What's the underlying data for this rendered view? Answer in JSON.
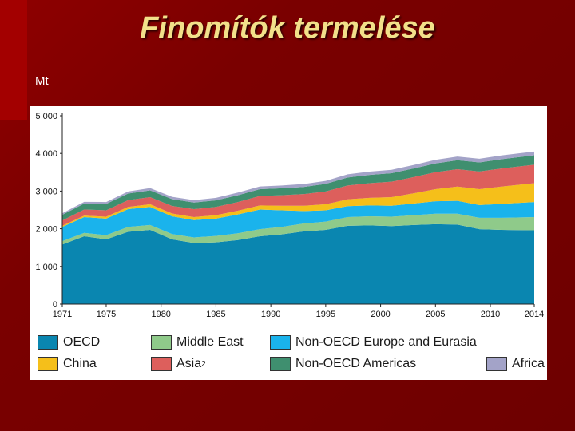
{
  "slide": {
    "title": "Finomítók termelése",
    "unit": "Mt"
  },
  "chart_data": {
    "type": "area",
    "stacked": true,
    "title": "Finomítók termelése",
    "ylabel": "Mt",
    "xlabel": "",
    "ylim": [
      0,
      5000
    ],
    "xlim": [
      1971,
      2014
    ],
    "grid": false,
    "legend_position": "bottom",
    "x_ticks": [
      "1971",
      "1975",
      "1980",
      "1985",
      "1990",
      "1995",
      "2000",
      "2005",
      "2010",
      "2014"
    ],
    "y_ticks": [
      "0",
      "1 000",
      "2 000",
      "3 000",
      "4 000",
      "5 000"
    ],
    "x": [
      1971,
      1973,
      1975,
      1977,
      1979,
      1981,
      1983,
      1985,
      1987,
      1989,
      1991,
      1993,
      1995,
      1997,
      1999,
      2001,
      2003,
      2005,
      2007,
      2009,
      2011,
      2014
    ],
    "series": [
      {
        "name": "OECD",
        "color": "#0a86b0",
        "values": [
          1580,
          1800,
          1720,
          1920,
          1970,
          1720,
          1620,
          1640,
          1700,
          1800,
          1850,
          1930,
          1970,
          2080,
          2090,
          2070,
          2100,
          2120,
          2110,
          1990,
          1970,
          1960
        ]
      },
      {
        "name": "Middle East",
        "color": "#8fca8a",
        "values": [
          90,
          90,
          110,
          130,
          130,
          140,
          150,
          170,
          180,
          190,
          200,
          210,
          220,
          230,
          240,
          250,
          260,
          280,
          290,
          300,
          320,
          350
        ]
      },
      {
        "name": "Non-OECD Europe and Eurasia",
        "color": "#1ab3ec",
        "values": [
          380,
          420,
          440,
          470,
          480,
          470,
          460,
          460,
          500,
          520,
          440,
          330,
          300,
          290,
          290,
          290,
          310,
          330,
          340,
          340,
          370,
          400
        ]
      },
      {
        "name": "China",
        "color": "#f5bf1a",
        "values": [
          30,
          40,
          50,
          60,
          70,
          75,
          80,
          90,
          100,
          110,
          120,
          140,
          160,
          180,
          200,
          230,
          270,
          320,
          380,
          420,
          460,
          500
        ]
      },
      {
        "name": "Asia²",
        "color": "#dd5f5c",
        "values": [
          140,
          160,
          170,
          180,
          190,
          200,
          210,
          220,
          230,
          250,
          280,
          310,
          340,
          370,
          390,
          410,
          430,
          450,
          460,
          470,
          480,
          490
        ]
      },
      {
        "name": "Non-OECD Americas",
        "color": "#3f8f6f",
        "values": [
          150,
          160,
          170,
          175,
          180,
          180,
          175,
          175,
          180,
          180,
          185,
          190,
          200,
          210,
          220,
          225,
          230,
          235,
          240,
          240,
          245,
          250
        ]
      },
      {
        "name": "Africa",
        "color": "#a3a3c8",
        "values": [
          40,
          45,
          50,
          55,
          60,
          62,
          64,
          66,
          70,
          72,
          75,
          78,
          80,
          85,
          88,
          90,
          92,
          95,
          96,
          98,
          100,
          100
        ]
      }
    ]
  },
  "legend": {
    "items": [
      {
        "label": "OECD",
        "sup": "",
        "color": "#0a86b0"
      },
      {
        "label": "Middle East",
        "sup": "",
        "color": "#8fca8a"
      },
      {
        "label": "Non-OECD Europe and Eurasia",
        "sup": "",
        "color": "#1ab3ec"
      },
      {
        "label": "China",
        "sup": "",
        "color": "#f5bf1a"
      },
      {
        "label": "Asia",
        "sup": "2",
        "color": "#dd5f5c"
      },
      {
        "label": "Non-OECD Americas",
        "sup": "",
        "color": "#3f8f6f"
      },
      {
        "label": "Africa",
        "sup": "",
        "color": "#a3a3c8"
      }
    ]
  }
}
